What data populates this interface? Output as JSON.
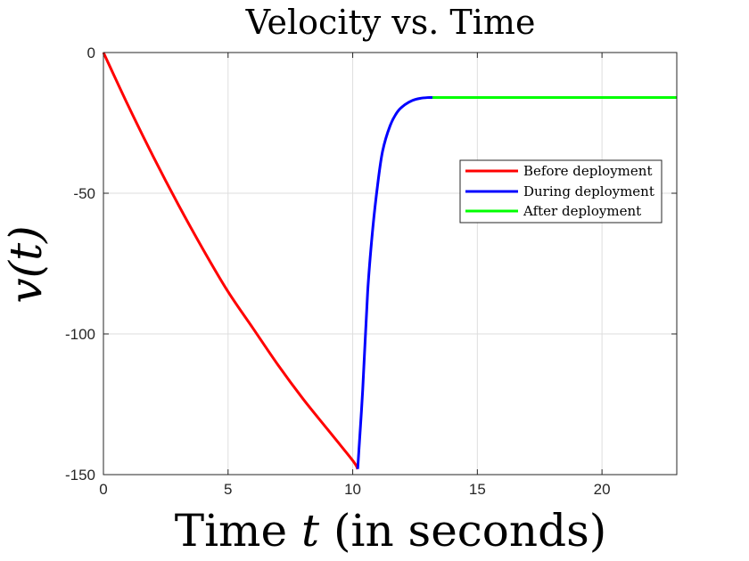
{
  "chart_data": {
    "type": "line",
    "title": "Velocity vs. Time",
    "xlabel_prefix": "Time ",
    "xlabel_var": "t",
    "xlabel_suffix": " (in seconds)",
    "ylabel": "v(t)",
    "xlim": [
      0,
      23
    ],
    "ylim": [
      -150,
      0
    ],
    "xticks": [
      0,
      5,
      10,
      15,
      20
    ],
    "xtick_labels": [
      "0",
      "5",
      "10",
      "15",
      "20"
    ],
    "yticks": [
      0,
      -50,
      -100,
      -150
    ],
    "ytick_labels": [
      "0",
      "-50",
      "-100",
      "-150"
    ],
    "grid": true,
    "legend_position": "right",
    "series": [
      {
        "name": "Before deployment",
        "color": "#ff0000",
        "x": [
          0,
          1,
          2,
          3,
          4,
          5,
          6,
          7,
          8,
          9,
          10,
          10.2
        ],
        "y": [
          0,
          -19,
          -37,
          -54,
          -70,
          -85,
          -98,
          -111,
          -123,
          -134,
          -145,
          -148
        ]
      },
      {
        "name": "During deployment",
        "color": "#0000ff",
        "x": [
          10.2,
          10.4,
          10.6,
          10.8,
          11.0,
          11.2,
          11.5,
          11.8,
          12.1,
          12.4,
          12.7,
          13.0,
          13.2
        ],
        "y": [
          -148,
          -120,
          -85,
          -63,
          -47,
          -35,
          -26,
          -21,
          -18.5,
          -17,
          -16.3,
          -16,
          -16
        ]
      },
      {
        "name": "After deployment",
        "color": "#00ff00",
        "x": [
          13.2,
          23
        ],
        "y": [
          -16,
          -16
        ]
      }
    ]
  }
}
